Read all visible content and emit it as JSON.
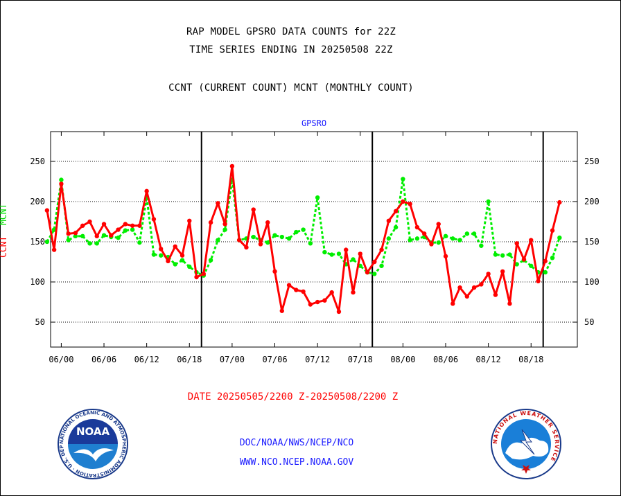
{
  "header": {
    "title_line1": "RAP MODEL GPSRO DATA COUNTS for 22Z",
    "title_line2": "TIME SERIES ENDING IN 20250508 22Z",
    "subtitle": "CCNT (CURRENT COUNT) MCNT (MONTHLY COUNT)"
  },
  "panel_label": "GPSRO",
  "y_axis": {
    "ccnt_label": "CCNT",
    "mcnt_label": "MCNT"
  },
  "date_range_label": "DATE 20250505/2200 Z-20250508/2200 Z",
  "credits": {
    "line1": "DOC/NOAA/NWS/NCEP/NCO",
    "line2": "WWW.NCO.NCEP.NOAA.GOV"
  },
  "logos": {
    "noaa": {
      "text": "NOAA",
      "ring_text": "NATIONAL OCEANIC AND ATMOSPHERIC ADMINISTRATION · U.S. DEPARTMENT OF COMMERCE"
    },
    "nws": {
      "ring_text": "NATIONAL WEATHER SERVICE"
    }
  },
  "colors": {
    "ccnt": "#ff0000",
    "mcnt": "#00ee00",
    "labels": "#1a1aff"
  },
  "chart_data": {
    "type": "line",
    "title": "GPSRO",
    "ylim": [
      19,
      287
    ],
    "xlim": [
      -1.5,
      72.5
    ],
    "grid_y": [
      50,
      100,
      150,
      200,
      250
    ],
    "y_ticks": [
      50,
      100,
      150,
      200,
      250
    ],
    "x_ticks": [
      {
        "x": 0,
        "label": "06/00"
      },
      {
        "x": 6,
        "label": "06/06"
      },
      {
        "x": 12,
        "label": "06/12"
      },
      {
        "x": 18,
        "label": "06/18"
      },
      {
        "x": 24,
        "label": "07/00"
      },
      {
        "x": 30,
        "label": "07/06"
      },
      {
        "x": 36,
        "label": "07/12"
      },
      {
        "x": 42,
        "label": "07/18"
      },
      {
        "x": 48,
        "label": "08/00"
      },
      {
        "x": 54,
        "label": "08/06"
      },
      {
        "x": 60,
        "label": "08/12"
      },
      {
        "x": 66,
        "label": "08/18"
      }
    ],
    "day_boundaries": [
      19.7,
      43.7,
      67.7
    ],
    "x_start": -2,
    "series": [
      {
        "name": "CCNT",
        "color": "#ff0000",
        "values": [
          189,
          140,
          222,
          160,
          161,
          170,
          175,
          157,
          172,
          158,
          165,
          172,
          170,
          170,
          213,
          178,
          141,
          126,
          144,
          133,
          176,
          106,
          110,
          174,
          198,
          172,
          244,
          152,
          143,
          190,
          147,
          174,
          113,
          64,
          96,
          90,
          88,
          72,
          75,
          77,
          87,
          63,
          140,
          87,
          135,
          112,
          125,
          140,
          176,
          188,
          200,
          197,
          168,
          160,
          147,
          172,
          132,
          73,
          93,
          82,
          93,
          97,
          110,
          84,
          113,
          73,
          148,
          128,
          152,
          101,
          126,
          164,
          199
        ]
      },
      {
        "name": "MCNT",
        "color": "#00ee00",
        "values": [
          150,
          165,
          227,
          152,
          157,
          157,
          148,
          148,
          158,
          156,
          155,
          164,
          165,
          149,
          206,
          134,
          133,
          131,
          122,
          127,
          119,
          112,
          108,
          127,
          152,
          165,
          227,
          152,
          154,
          156,
          152,
          149,
          158,
          156,
          154,
          162,
          165,
          148,
          205,
          137,
          134,
          135,
          122,
          128,
          120,
          112,
          110,
          120,
          154,
          168,
          228,
          152,
          154,
          156,
          149,
          149,
          157,
          154,
          152,
          160,
          160,
          145,
          200,
          134,
          133,
          134,
          122,
          127,
          120,
          112,
          112,
          130,
          155
        ]
      }
    ]
  }
}
